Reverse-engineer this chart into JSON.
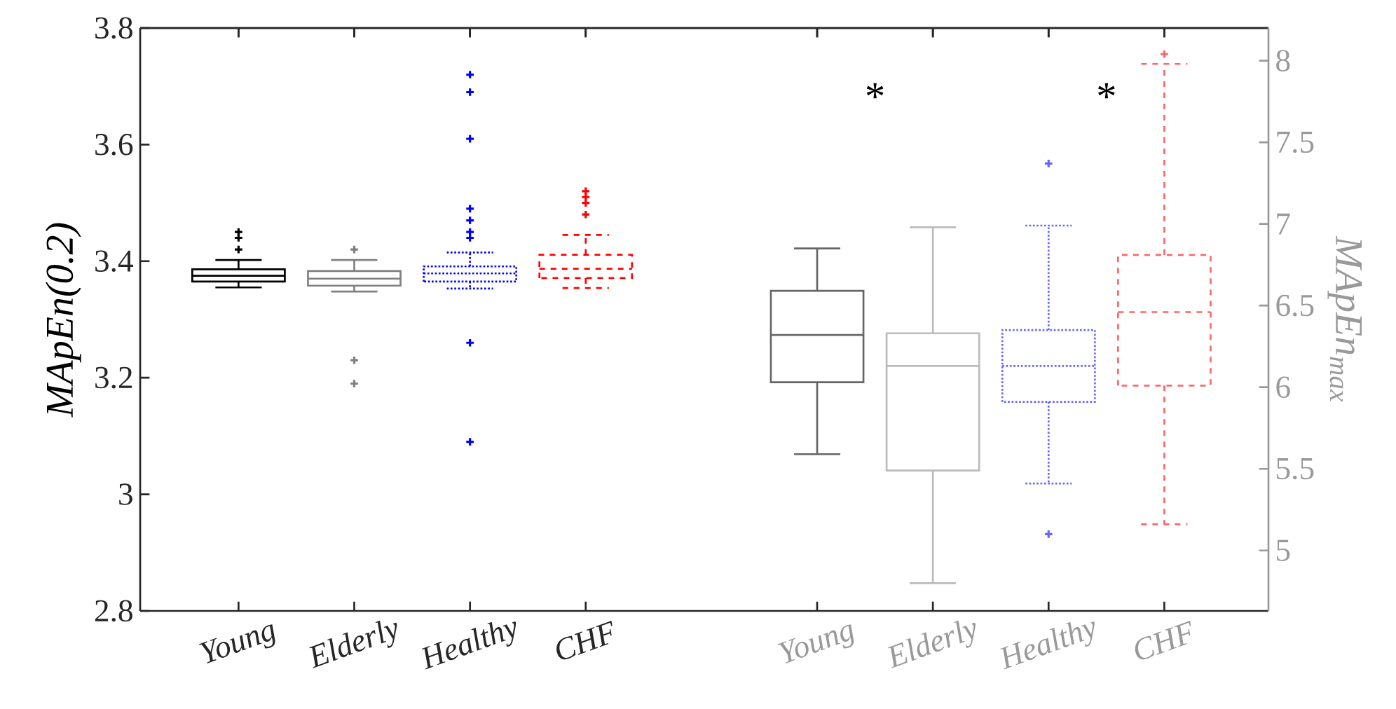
{
  "chart_data": {
    "type": "box",
    "categories": [
      "Young",
      "Elderly",
      "Healthy",
      "CHF",
      null,
      "Young",
      "Elderly",
      "Healthy",
      "CHF"
    ],
    "ylabel": "MApEn(0.2)",
    "y2label": "MApEn$_{max}$",
    "ylim": [
      2.8,
      3.8
    ],
    "yticks": [
      2.8,
      3,
      3.2,
      3.4,
      3.6,
      3.8
    ],
    "y2lim": [
      4.63,
      8.2
    ],
    "y2ticks": [
      5,
      5.5,
      6,
      6.5,
      7,
      7.5,
      8
    ],
    "marker": "cross",
    "annotations": [
      "*",
      "*"
    ],
    "series": [
      {
        "axis": "y",
        "color": "#000000",
        "line_style": "solid",
        "boxes": [
          {
            "low": 3.355,
            "q1": 3.365,
            "median": 3.375,
            "q3": 3.386,
            "high": 3.402,
            "outliers": [
              3.45,
              3.44,
              3.42
            ]
          },
          null,
          null,
          null,
          null,
          null,
          null,
          null,
          null
        ]
      },
      {
        "axis": "y",
        "color": "#808080",
        "line_style": "solid",
        "boxes": [
          null,
          {
            "low": 3.348,
            "q1": 3.358,
            "median": 3.37,
            "q3": 3.383,
            "high": 3.402,
            "outliers": [
              3.42,
              3.23,
              3.19
            ]
          },
          null,
          null,
          null,
          null,
          null,
          null,
          null
        ]
      },
      {
        "axis": "y",
        "color": "#0000ff",
        "line_style": "dotted",
        "boxes": [
          null,
          null,
          {
            "low": 3.353,
            "q1": 3.365,
            "median": 3.379,
            "q3": 3.391,
            "high": 3.415,
            "outliers": [
              3.72,
              3.69,
              3.61,
              3.49,
              3.47,
              3.45,
              3.44,
              3.26,
              3.09
            ]
          },
          null,
          null,
          null,
          null,
          null,
          null
        ]
      },
      {
        "axis": "y",
        "color": "#ff0000",
        "line_style": "dashed",
        "boxes": [
          null,
          null,
          null,
          {
            "low": 3.354,
            "q1": 3.371,
            "median": 3.387,
            "q3": 3.411,
            "high": 3.445,
            "outliers": [
              3.52,
              3.51,
              3.5,
              3.48
            ]
          },
          null,
          null,
          null,
          null,
          null
        ]
      },
      {
        "axis": "y2",
        "color": "#666666",
        "line_style": "solid",
        "boxes": [
          null,
          null,
          null,
          null,
          null,
          {
            "low": 5.59,
            "q1": 6.03,
            "median": 6.32,
            "q3": 6.59,
            "high": 6.85
          },
          null,
          null,
          null
        ]
      },
      {
        "axis": "y2",
        "color": "#bbbbbb",
        "line_style": "solid",
        "boxes": [
          null,
          null,
          null,
          null,
          null,
          null,
          {
            "low": 4.8,
            "q1": 5.49,
            "median": 6.13,
            "q3": 6.33,
            "high": 6.98
          },
          null,
          null
        ]
      },
      {
        "axis": "y2",
        "color": "#6666ff",
        "line_style": "dotted",
        "boxes": [
          null,
          null,
          null,
          null,
          null,
          null,
          null,
          {
            "low": 5.41,
            "q1": 5.91,
            "median": 6.13,
            "q3": 6.35,
            "high": 6.99,
            "outliers": [
              7.37,
              5.1
            ]
          },
          null
        ]
      },
      {
        "axis": "y2",
        "color": "#ff6666",
        "line_style": "dashed",
        "boxes": [
          null,
          null,
          null,
          null,
          null,
          null,
          null,
          null,
          {
            "low": 5.16,
            "q1": 6.01,
            "median": 6.46,
            "q3": 6.81,
            "high": 7.98,
            "outliers": [
              8.04
            ]
          }
        ]
      }
    ]
  }
}
